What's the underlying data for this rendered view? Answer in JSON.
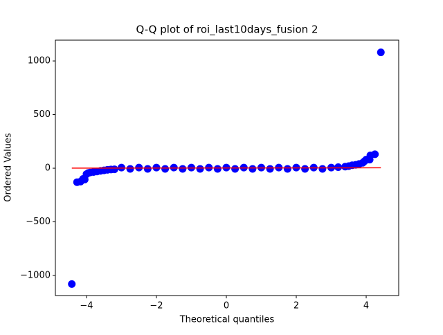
{
  "chart_data": {
    "type": "scatter",
    "title": "Q-Q plot of roi_last10days_fusion 2",
    "xlabel": "Theoretical quantiles",
    "ylabel": "Ordered Values",
    "xlim": [
      -4.89,
      4.93
    ],
    "ylim": [
      -1187,
      1194
    ],
    "xticks": [
      {
        "value": -4,
        "label": "−4"
      },
      {
        "value": -2,
        "label": "−2"
      },
      0,
      2,
      4
    ],
    "yticks": [
      {
        "value": -1000,
        "label": "−1000"
      },
      {
        "value": -500,
        "label": "−500"
      },
      0,
      500,
      1000
    ],
    "points": {
      "color": "#0000ff",
      "x": [
        -4.42,
        -4.27,
        -4.17,
        -4.1,
        -4.05,
        -4.0,
        -3.95,
        -3.9,
        -3.8,
        -3.7,
        -3.6,
        -3.5,
        -3.4,
        -3.3,
        -3.2,
        -3.0,
        -2.75,
        -2.5,
        -2.25,
        -2.0,
        -1.75,
        -1.5,
        -1.25,
        -1.0,
        -0.75,
        -0.5,
        -0.25,
        0,
        0.25,
        0.5,
        0.75,
        1.0,
        1.25,
        1.5,
        1.75,
        2.0,
        2.25,
        2.5,
        2.75,
        3.0,
        3.2,
        3.4,
        3.5,
        3.6,
        3.7,
        3.8,
        3.9,
        3.95,
        4.0,
        4.1,
        4.12,
        4.25,
        4.42
      ],
      "values": [
        -1080,
        -130,
        -125,
        -100,
        -105,
        -55,
        -45,
        -40,
        -35,
        -30,
        -25,
        -20,
        -15,
        -12,
        -10,
        6,
        -6,
        6,
        -6,
        6,
        -6,
        6,
        -6,
        6,
        -6,
        6,
        -6,
        6,
        -6,
        6,
        -6,
        6,
        -6,
        6,
        -6,
        6,
        -6,
        6,
        -6,
        6,
        10,
        15,
        20,
        28,
        32,
        40,
        50,
        65,
        80,
        80,
        120,
        130,
        1080
      ]
    },
    "fit_line": {
      "color": "#ff0000",
      "x": [
        -4.42,
        4.42
      ],
      "values": [
        1,
        4
      ]
    }
  }
}
